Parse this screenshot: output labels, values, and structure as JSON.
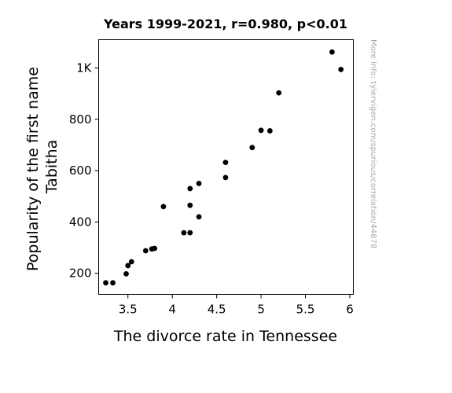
{
  "chart_data": {
    "type": "scatter",
    "title": "Years 1999-2021, r=0.980, p<0.01",
    "xlabel": "The divorce rate in Tennessee",
    "ylabel_lines": [
      "Popularity of the first name",
      "Tabitha"
    ],
    "watermark": "More info: tylervigen.com/spurious/correlation/4487​8",
    "xlim": [
      3.17,
      6.04
    ],
    "ylim": [
      118,
      1110
    ],
    "x_ticks": [
      {
        "value": 3.5,
        "label": "3.5"
      },
      {
        "value": 4.0,
        "label": "4"
      },
      {
        "value": 4.5,
        "label": "4.5"
      },
      {
        "value": 5.0,
        "label": "5"
      },
      {
        "value": 5.5,
        "label": "5.5"
      },
      {
        "value": 6.0,
        "label": "6"
      }
    ],
    "y_ticks": [
      {
        "value": 200,
        "label": "200"
      },
      {
        "value": 400,
        "label": "400"
      },
      {
        "value": 600,
        "label": "600"
      },
      {
        "value": 800,
        "label": "800"
      },
      {
        "value": 1000,
        "label": "1K"
      }
    ],
    "grid": false,
    "point_color": "#000000",
    "points": [
      {
        "x": 3.25,
        "y": 163
      },
      {
        "x": 3.33,
        "y": 163
      },
      {
        "x": 3.48,
        "y": 198
      },
      {
        "x": 3.5,
        "y": 230
      },
      {
        "x": 3.54,
        "y": 245
      },
      {
        "x": 3.7,
        "y": 288
      },
      {
        "x": 3.77,
        "y": 295
      },
      {
        "x": 3.8,
        "y": 297
      },
      {
        "x": 3.9,
        "y": 460
      },
      {
        "x": 4.13,
        "y": 358
      },
      {
        "x": 4.2,
        "y": 358
      },
      {
        "x": 4.2,
        "y": 530
      },
      {
        "x": 4.2,
        "y": 465
      },
      {
        "x": 4.3,
        "y": 420
      },
      {
        "x": 4.3,
        "y": 550
      },
      {
        "x": 4.6,
        "y": 632
      },
      {
        "x": 4.6,
        "y": 573
      },
      {
        "x": 4.9,
        "y": 690
      },
      {
        "x": 5.0,
        "y": 757
      },
      {
        "x": 5.1,
        "y": 755
      },
      {
        "x": 5.2,
        "y": 903
      },
      {
        "x": 5.8,
        "y": 1062
      },
      {
        "x": 5.9,
        "y": 994
      }
    ]
  }
}
